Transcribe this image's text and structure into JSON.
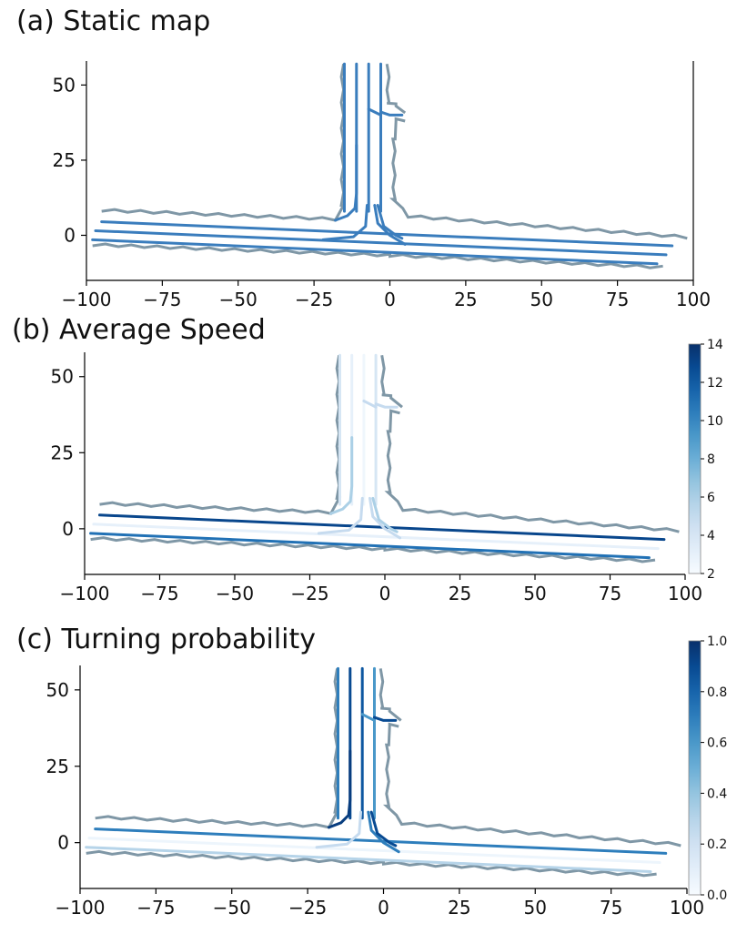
{
  "chart_data": [
    {
      "type": "line",
      "title": "(a) Static map",
      "x_ticks": [
        "−100",
        "−75",
        "−50",
        "−25",
        "0",
        "25",
        "50",
        "75",
        "100"
      ],
      "y_ticks": [
        "0",
        "25",
        "50"
      ],
      "xlim": [
        -100,
        100
      ],
      "ylim": [
        -15,
        58
      ],
      "grid": false,
      "colormap": null,
      "series": [
        {
          "x": [
            -95,
            93
          ],
          "y": [
            4.5,
            -3.5
          ],
          "v": null
        },
        {
          "x": [
            -97,
            91
          ],
          "y": [
            1.5,
            -6.5
          ],
          "v": null
        },
        {
          "x": [
            -98,
            88
          ],
          "y": [
            -1.5,
            -9.5
          ],
          "v": null
        },
        {
          "x": [
            -15,
            -15
          ],
          "y": [
            8,
            57
          ],
          "v": null
        },
        {
          "x": [
            -11,
            -11
          ],
          "y": [
            8,
            57
          ],
          "v": null
        },
        {
          "x": [
            -7,
            -7
          ],
          "y": [
            8,
            57
          ],
          "v": null
        },
        {
          "x": [
            -3,
            -3
          ],
          "y": [
            8,
            57
          ],
          "v": null
        },
        {
          "x": [
            -18,
            -14,
            -11.5,
            -11,
            -11
          ],
          "y": [
            5,
            6.5,
            9,
            14,
            30
          ],
          "v": null
        },
        {
          "x": [
            -22,
            -12,
            -8,
            -7.5
          ],
          "y": [
            -1.5,
            -0.5,
            3,
            10
          ],
          "v": null
        },
        {
          "x": [
            -5,
            -4,
            0,
            5
          ],
          "y": [
            10,
            4,
            0,
            -3
          ],
          "v": null
        },
        {
          "x": [
            -4,
            -2,
            2,
            4
          ],
          "y": [
            10,
            3,
            0,
            -1
          ],
          "v": null
        },
        {
          "x": [
            -7,
            -5,
            -3
          ],
          "y": [
            42,
            41,
            40
          ],
          "v": null
        },
        {
          "x": [
            -3,
            0,
            4
          ],
          "y": [
            41,
            40,
            40
          ],
          "v": null
        }
      ],
      "boundary": [
        {
          "x": [
            -95,
            -18,
            -16,
            -16
          ],
          "y": [
            8,
            5,
            10,
            57
          ]
        },
        {
          "x": [
            -1,
            -1,
            2,
            5
          ],
          "y": [
            57,
            44,
            43,
            40
          ]
        },
        {
          "x": [
            5,
            2,
            1,
            1,
            6,
            98
          ],
          "y": [
            38,
            38,
            32,
            12,
            6,
            -1
          ]
        },
        {
          "x": [
            -98,
            0,
            90
          ],
          "y": [
            -3.5,
            -7,
            -11
          ]
        }
      ]
    },
    {
      "type": "line",
      "title": "(b) Average Speed",
      "x_ticks": [
        "−100",
        "−75",
        "−50",
        "−25",
        "0",
        "25",
        "50",
        "75",
        "100"
      ],
      "y_ticks": [
        "0",
        "25",
        "50"
      ],
      "xlim": [
        -100,
        100
      ],
      "ylim": [
        -15,
        58
      ],
      "grid": false,
      "colormap": {
        "name": "Blues",
        "min": 2,
        "max": 14,
        "ticks": [
          "2",
          "4",
          "6",
          "8",
          "10",
          "12",
          "14"
        ]
      },
      "series": [
        {
          "x": [
            -95,
            93
          ],
          "y": [
            4.5,
            -3.5
          ],
          "v": 13
        },
        {
          "x": [
            -97,
            91
          ],
          "y": [
            1.5,
            -6.5
          ],
          "v": 3
        },
        {
          "x": [
            -98,
            88
          ],
          "y": [
            -1.5,
            -9.5
          ],
          "v": 11
        },
        {
          "x": [
            -15,
            -15
          ],
          "y": [
            8,
            57
          ],
          "v": 4
        },
        {
          "x": [
            -11,
            -11
          ],
          "y": [
            8,
            57
          ],
          "v": 3
        },
        {
          "x": [
            -7,
            -7
          ],
          "y": [
            8,
            57
          ],
          "v": 2.5
        },
        {
          "x": [
            -3,
            -3
          ],
          "y": [
            8,
            57
          ],
          "v": 4
        },
        {
          "x": [
            -18,
            -14,
            -11.5,
            -11,
            -11
          ],
          "y": [
            5,
            6.5,
            9,
            14,
            30
          ],
          "v": 6
        },
        {
          "x": [
            -22,
            -12,
            -8,
            -7.5
          ],
          "y": [
            -1.5,
            -0.5,
            3,
            10
          ],
          "v": 5
        },
        {
          "x": [
            -5,
            -4,
            0,
            5
          ],
          "y": [
            10,
            4,
            0,
            -3
          ],
          "v": 5
        },
        {
          "x": [
            -4,
            -2,
            2,
            4
          ],
          "y": [
            10,
            3,
            0,
            -1
          ],
          "v": 6
        },
        {
          "x": [
            -7,
            -5,
            -3
          ],
          "y": [
            42,
            41,
            40
          ],
          "v": 5
        },
        {
          "x": [
            -3,
            0,
            4
          ],
          "y": [
            41,
            40,
            40
          ],
          "v": 5
        }
      ],
      "boundary": [
        {
          "x": [
            -95,
            -18,
            -16,
            -16
          ],
          "y": [
            8,
            5,
            10,
            57
          ]
        },
        {
          "x": [
            -1,
            -1,
            2,
            5
          ],
          "y": [
            57,
            44,
            43,
            40
          ]
        },
        {
          "x": [
            5,
            2,
            1,
            1,
            6,
            98
          ],
          "y": [
            38,
            38,
            32,
            12,
            6,
            -1
          ]
        },
        {
          "x": [
            -98,
            0,
            90
          ],
          "y": [
            -3.5,
            -7,
            -11
          ]
        }
      ]
    },
    {
      "type": "line",
      "title": "(c) Turning probability",
      "x_ticks": [
        "−100",
        "−75",
        "−50",
        "−25",
        "0",
        "25",
        "50",
        "75",
        "100"
      ],
      "y_ticks": [
        "0",
        "25",
        "50"
      ],
      "xlim": [
        -100,
        100
      ],
      "ylim": [
        -15,
        58
      ],
      "grid": false,
      "colormap": {
        "name": "Blues",
        "min": 0,
        "max": 1,
        "ticks": [
          "0.0",
          "0.2",
          "0.4",
          "0.6",
          "0.8",
          "1.0"
        ]
      },
      "series": [
        {
          "x": [
            -95,
            93
          ],
          "y": [
            4.5,
            -3.5
          ],
          "v": 0.7
        },
        {
          "x": [
            -97,
            91
          ],
          "y": [
            1.5,
            -6.5
          ],
          "v": 0.05
        },
        {
          "x": [
            -98,
            88
          ],
          "y": [
            -1.5,
            -9.5
          ],
          "v": 0.3
        },
        {
          "x": [
            -15,
            -15
          ],
          "y": [
            8,
            57
          ],
          "v": 0.7
        },
        {
          "x": [
            -11,
            -11
          ],
          "y": [
            8,
            57
          ],
          "v": 0.9
        },
        {
          "x": [
            -7,
            -7
          ],
          "y": [
            8,
            57
          ],
          "v": 0.85
        },
        {
          "x": [
            -3,
            -3
          ],
          "y": [
            8,
            57
          ],
          "v": 0.6
        },
        {
          "x": [
            -18,
            -14,
            -11.5,
            -11,
            -11
          ],
          "y": [
            5,
            6.5,
            9,
            14,
            30
          ],
          "v": 0.95
        },
        {
          "x": [
            -22,
            -12,
            -8,
            -7.5
          ],
          "y": [
            -1.5,
            -0.5,
            3,
            10
          ],
          "v": 0.25
        },
        {
          "x": [
            -5,
            -4,
            0,
            5
          ],
          "y": [
            10,
            4,
            0,
            -3
          ],
          "v": 0.7
        },
        {
          "x": [
            -4,
            -2,
            2,
            4
          ],
          "y": [
            10,
            3,
            0,
            -1
          ],
          "v": 0.9
        },
        {
          "x": [
            -7,
            -5,
            -3
          ],
          "y": [
            42,
            41,
            40
          ],
          "v": 0.6
        },
        {
          "x": [
            -3,
            0,
            4
          ],
          "y": [
            41,
            40,
            40
          ],
          "v": 0.9
        }
      ],
      "boundary": [
        {
          "x": [
            -95,
            -18,
            -16,
            -16
          ],
          "y": [
            8,
            5,
            10,
            57
          ]
        },
        {
          "x": [
            -1,
            -1,
            2,
            5
          ],
          "y": [
            57,
            44,
            43,
            40
          ]
        },
        {
          "x": [
            5,
            2,
            1,
            1,
            6,
            98
          ],
          "y": [
            38,
            38,
            32,
            12,
            6,
            -1
          ]
        },
        {
          "x": [
            -98,
            0,
            90
          ],
          "y": [
            -3.5,
            -7,
            -11
          ]
        }
      ]
    }
  ]
}
